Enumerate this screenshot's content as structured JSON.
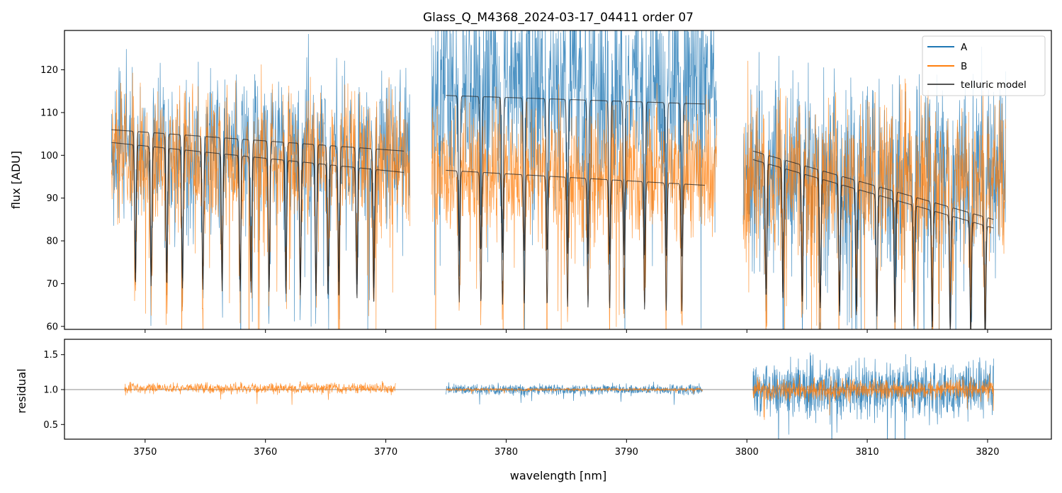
{
  "chart_data": {
    "type": "line",
    "title": "Glass_Q_M4368_2024-03-17_04411  order 07",
    "xlabel": "wavelength [nm]",
    "xlim": [
      3743.3,
      3825.3
    ],
    "xticks": [
      3750,
      3760,
      3770,
      3780,
      3790,
      3800,
      3810,
      3820
    ],
    "top_panel": {
      "ylabel": "flux [ADU]",
      "ylim": [
        59.3,
        129.2
      ],
      "yticks": [
        60,
        70,
        80,
        90,
        100,
        110,
        120
      ],
      "legend_position": "top-right",
      "series": [
        {
          "name": "A",
          "color": "#1f77b4",
          "segments": [
            {
              "x_range": [
                3747.2,
                3772.0
              ],
              "level": 102,
              "noise": 9
            },
            {
              "x_range": [
                3773.8,
                3797.5
              ],
              "level": 116,
              "noise": 13
            },
            {
              "x_range": [
                3799.7,
                3821.5
              ],
              "level": 96,
              "noise": 11
            }
          ]
        },
        {
          "name": "B",
          "color": "#ff7f0e",
          "segments": [
            {
              "x_range": [
                3747.2,
                3772.0
              ],
              "level": 99,
              "noise": 8
            },
            {
              "x_range": [
                3773.8,
                3797.5
              ],
              "level": 96,
              "noise": 8
            },
            {
              "x_range": [
                3799.7,
                3821.5
              ],
              "level": 95,
              "noise": 9
            }
          ]
        },
        {
          "name": "telluric model",
          "color": "#555555",
          "curves": [
            {
              "x_range": [
                3747.2,
                3771.5
              ],
              "start": 106,
              "end": 101
            },
            {
              "x_range": [
                3747.2,
                3771.5
              ],
              "start": 103,
              "end": 96
            },
            {
              "x_range": [
                3775.0,
                3796.5
              ],
              "start": 114,
              "end": 112
            },
            {
              "x_range": [
                3775.0,
                3796.5
              ],
              "start": 96.5,
              "end": 93
            },
            {
              "x_range": [
                3800.5,
                3820.5
              ],
              "start": 101,
              "end": 85
            },
            {
              "x_range": [
                3800.5,
                3820.5
              ],
              "start": 99,
              "end": 83
            }
          ],
          "absorption_lines": [
            3749.2,
            3750.5,
            3751.8,
            3753.1,
            3754.8,
            3756.4,
            3757.9,
            3758.8,
            3760.3,
            3761.7,
            3762.9,
            3764.2,
            3765.2,
            3766.1,
            3767.6,
            3769.0,
            3776.1,
            3777.9,
            3779.7,
            3781.5,
            3783.4,
            3785.1,
            3786.8,
            3788.6,
            3789.8,
            3791.5,
            3793.3,
            3794.6,
            3801.6,
            3803.0,
            3804.6,
            3806.1,
            3807.7,
            3809.1,
            3810.8,
            3812.3,
            3813.9,
            3815.4,
            3816.9,
            3818.6,
            3819.8
          ]
        }
      ]
    },
    "bottom_panel": {
      "ylabel": "residual",
      "ylim": [
        0.29,
        1.72
      ],
      "yticks": [
        0.5,
        1.0,
        1.5
      ],
      "reference_line": 1.0,
      "series": [
        {
          "name": "A",
          "color": "#1f77b4",
          "segments": [
            {
              "x_range": [
                3775.0,
                3796.3
              ],
              "level": 1.0,
              "noise": 0.07
            },
            {
              "x_range": [
                3800.5,
                3820.5
              ],
              "level": 1.0,
              "noise": 0.35
            }
          ]
        },
        {
          "name": "B",
          "color": "#ff7f0e",
          "segments": [
            {
              "x_range": [
                3748.3,
                3770.8
              ],
              "level": 1.02,
              "noise": 0.07
            },
            {
              "x_range": [
                3775.0,
                3796.3
              ],
              "level": 1.0,
              "noise": 0.02
            },
            {
              "x_range": [
                3800.5,
                3820.5
              ],
              "level": 1.0,
              "noise": 0.14
            }
          ]
        }
      ]
    }
  }
}
